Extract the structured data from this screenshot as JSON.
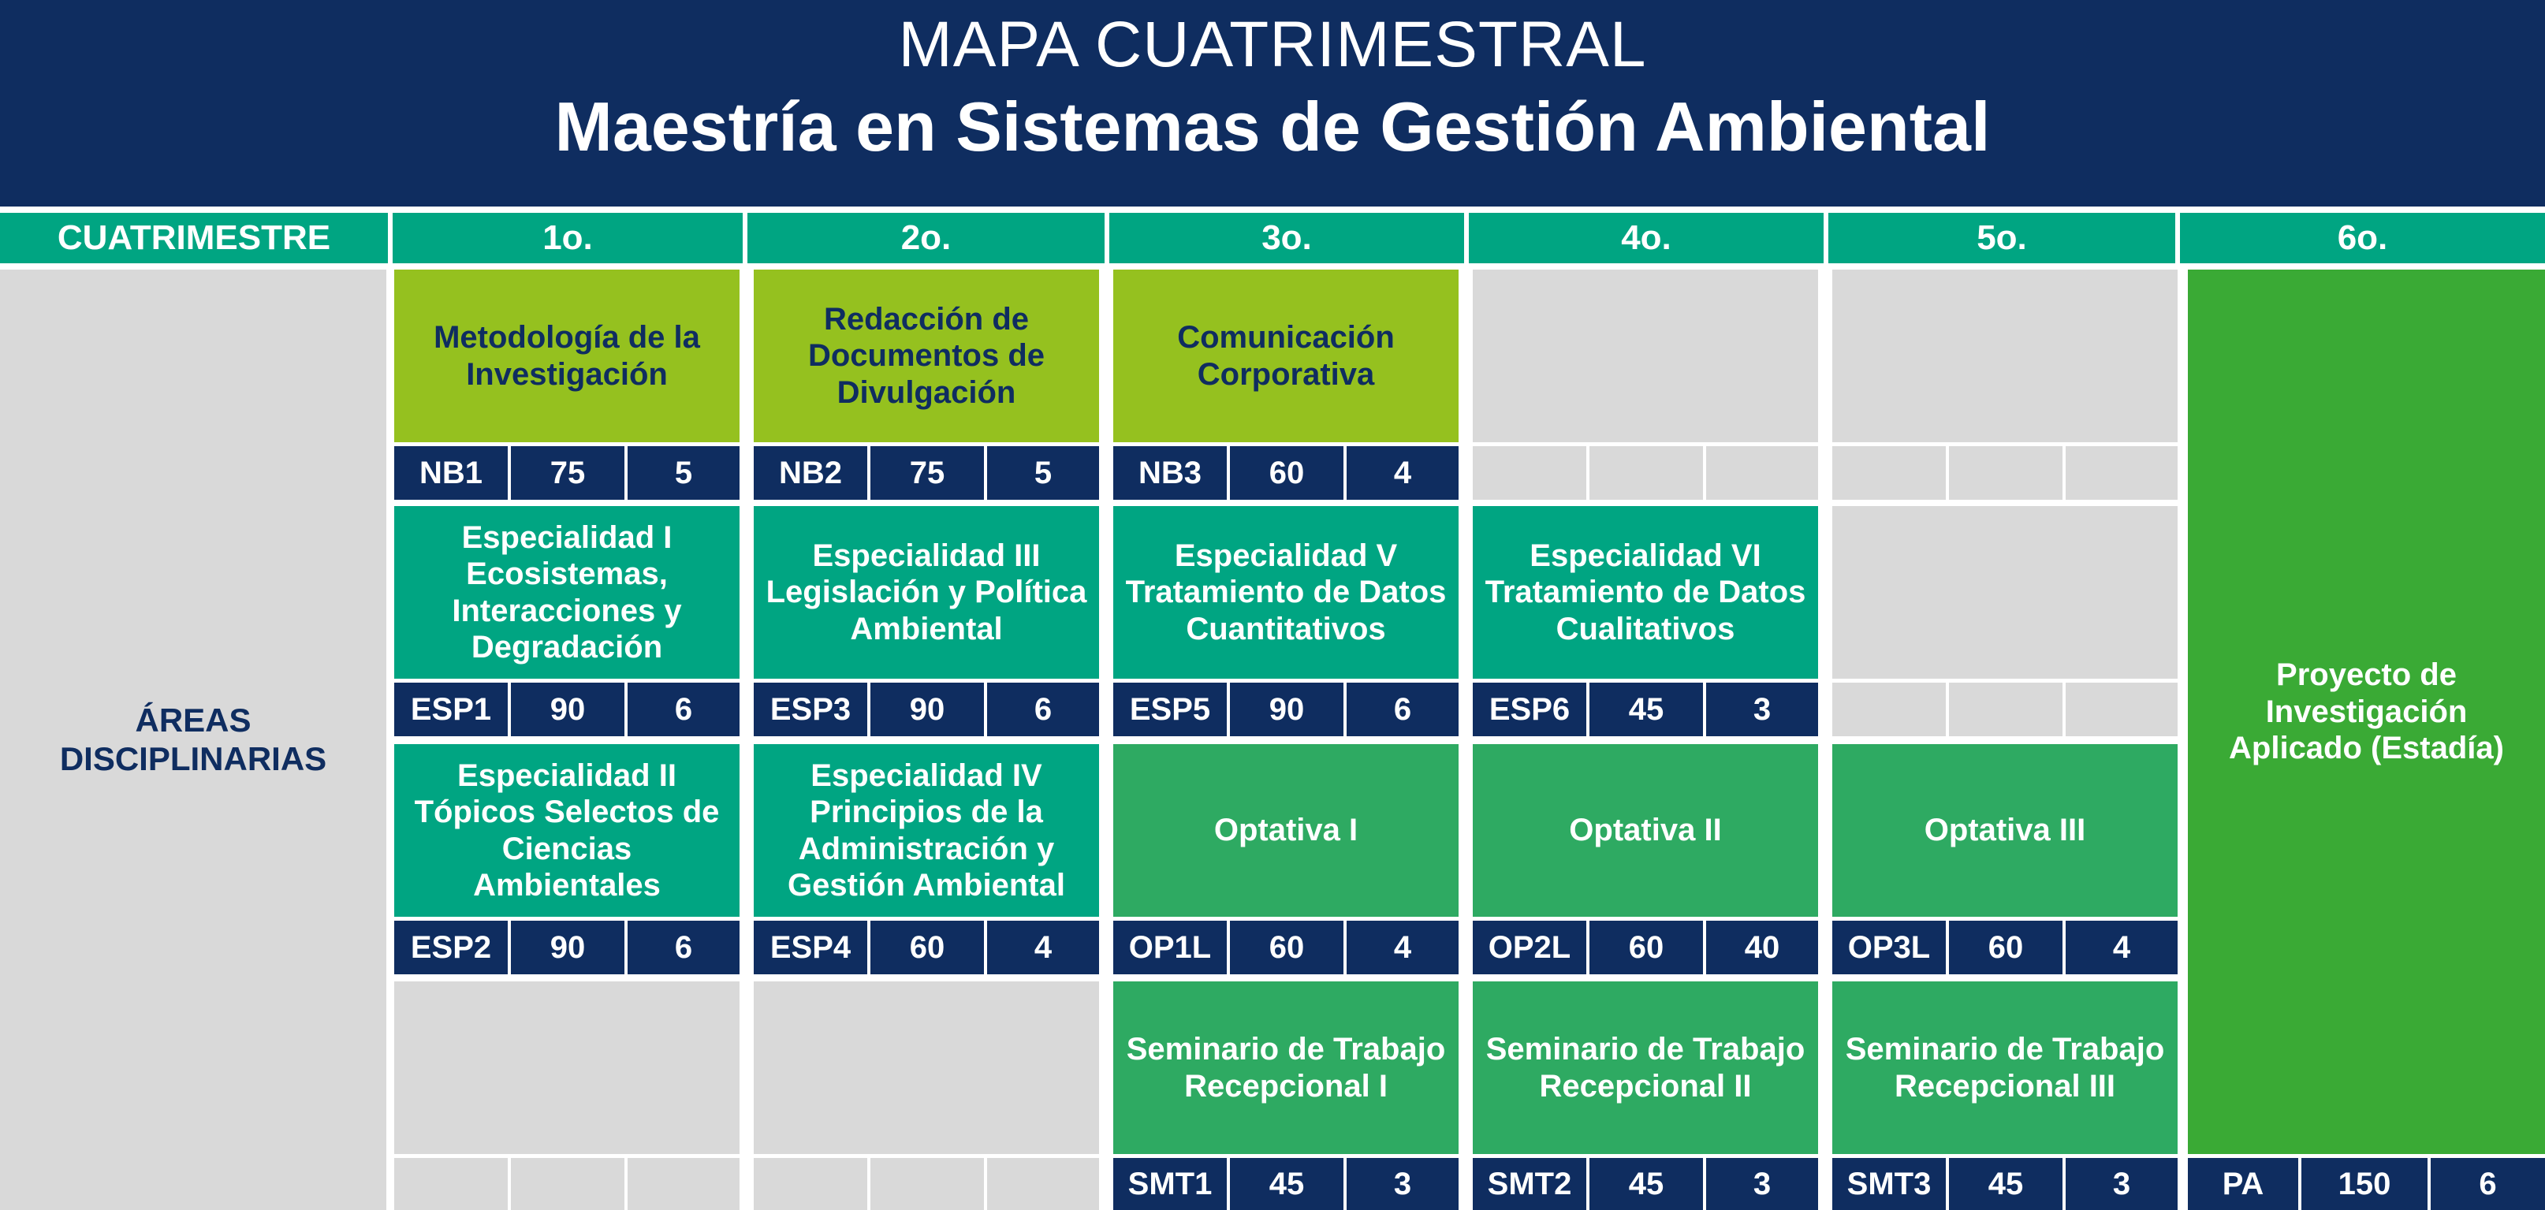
{
  "header": {
    "title": "MAPA CUATRIMESTRAL",
    "subtitle": "Maestría en Sistemas de Gestión Ambiental"
  },
  "columns": [
    "CUATRIMESTRE",
    "1o.",
    "2o.",
    "3o.",
    "4o.",
    "5o.",
    "6o."
  ],
  "side_label_line1": "ÁREAS",
  "side_label_line2": "DISCIPLINARIAS",
  "courses": {
    "metodologia": {
      "name": "Metodología de la Investigación",
      "code": "NB1",
      "hours": "75",
      "credits": "5"
    },
    "redaccion": {
      "name": "Redacción de Documentos de Divulgación",
      "code": "NB2",
      "hours": "75",
      "credits": "5"
    },
    "comunicacion": {
      "name": "Comunicación Corporativa",
      "code": "NB3",
      "hours": "60",
      "credits": "4"
    },
    "esp1": {
      "name": "Especialidad I Ecosistemas, Interacciones y Degradación",
      "code": "ESP1",
      "hours": "90",
      "credits": "6"
    },
    "esp3": {
      "name": "Especialidad III Legislación y Política Ambiental",
      "code": "ESP3",
      "hours": "90",
      "credits": "6"
    },
    "esp5": {
      "name": "Especialidad V Tratamiento de Datos Cuantitativos",
      "code": "ESP5",
      "hours": "90",
      "credits": "6"
    },
    "esp6": {
      "name": "Especialidad VI Tratamiento de Datos Cualitativos",
      "code": "ESP6",
      "hours": "45",
      "credits": "3"
    },
    "esp2": {
      "name": "Especialidad II Tópicos Selectos de Ciencias Ambientales",
      "code": "ESP2",
      "hours": "90",
      "credits": "6"
    },
    "esp4": {
      "name": "Especialidad IV Principios de la Administración y Gestión Ambiental",
      "code": "ESP4",
      "hours": "60",
      "credits": "4"
    },
    "op1": {
      "name": "Optativa I",
      "code": "OP1L",
      "hours": "60",
      "credits": "4"
    },
    "op2": {
      "name": "Optativa II",
      "code": "OP2L",
      "hours": "60",
      "credits": "40"
    },
    "op3": {
      "name": "Optativa III",
      "code": "OP3L",
      "hours": "60",
      "credits": "4"
    },
    "smt1": {
      "name": "Seminario de Trabajo Recepcional I",
      "code": "SMT1",
      "hours": "45",
      "credits": "3"
    },
    "smt2": {
      "name": "Seminario de Trabajo Recepcional II",
      "code": "SMT2",
      "hours": "45",
      "credits": "3"
    },
    "smt3": {
      "name": "Seminario de Trabajo Recepcional III",
      "code": "SMT3",
      "hours": "45",
      "credits": "3"
    },
    "pa": {
      "name": "Proyecto de Investigación Aplicado (Estadía)",
      "code": "PA",
      "hours": "150",
      "credits": "6"
    }
  },
  "colors": {
    "navy": "#0f2d60",
    "teal": "#00a582",
    "lime": "#95c11f",
    "green": "#2eaa62",
    "bright_green": "#3aaa35",
    "empty_gray": "#d9d9d9"
  }
}
